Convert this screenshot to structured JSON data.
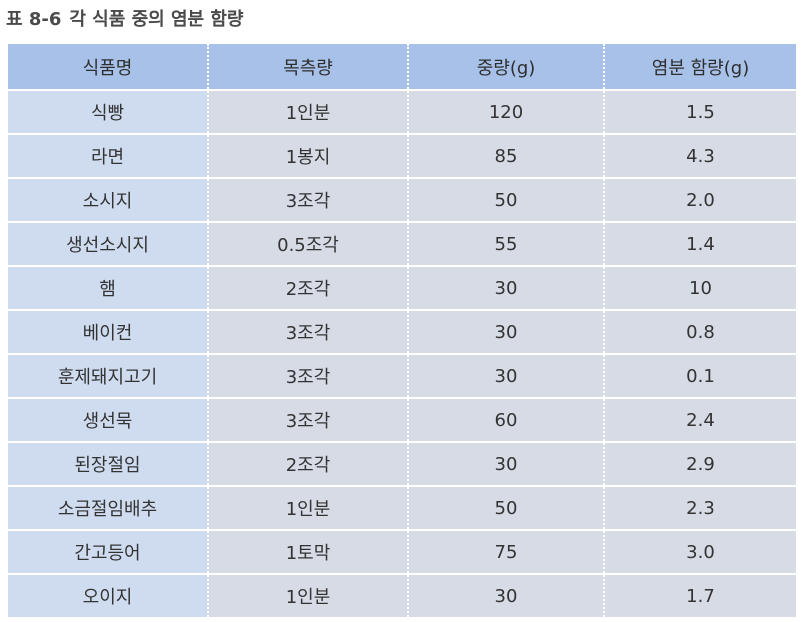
{
  "caption": {
    "label": "표 8-6",
    "title": "각 식품 중의 염분 함량"
  },
  "table": {
    "headers": [
      "식품명",
      "목측량",
      "중량(g)",
      "염분 함량(g)"
    ],
    "rows": [
      [
        "식빵",
        "1인분",
        "120",
        "1.5"
      ],
      [
        "라면",
        "1봉지",
        "85",
        "4.3"
      ],
      [
        "소시지",
        "3조각",
        "50",
        "2.0"
      ],
      [
        "생선소시지",
        "0.5조각",
        "55",
        "1.4"
      ],
      [
        "햄",
        "2조각",
        "30",
        "10"
      ],
      [
        "베이컨",
        "3조각",
        "30",
        "0.8"
      ],
      [
        "훈제돼지고기",
        "3조각",
        "30",
        "0.1"
      ],
      [
        "생선묵",
        "3조각",
        "60",
        "2.4"
      ],
      [
        "된장절임",
        "2조각",
        "30",
        "2.9"
      ],
      [
        "소금절임배추",
        "1인분",
        "50",
        "2.3"
      ],
      [
        "간고등어",
        "1토막",
        "75",
        "3.0"
      ],
      [
        "오이지",
        "1인분",
        "30",
        "1.7"
      ]
    ]
  },
  "colors": {
    "header_bg": "#a8c1e8",
    "first_col_bg": "#cfdcf0",
    "cell_bg": "#d6dbe6"
  }
}
